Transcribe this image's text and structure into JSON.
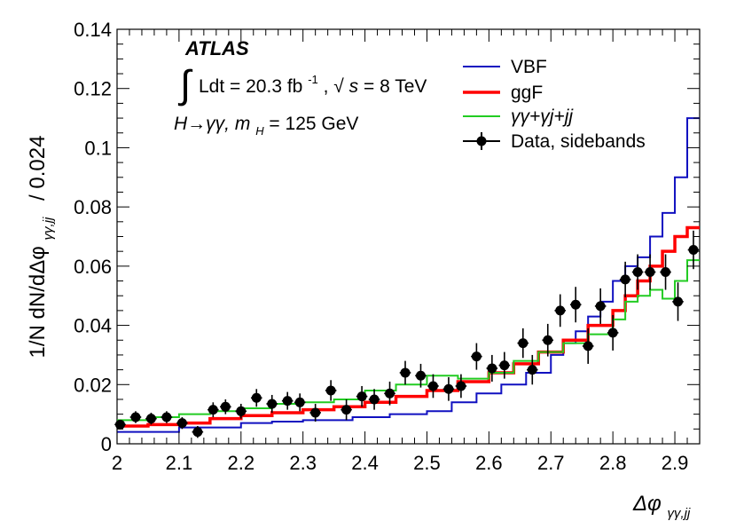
{
  "chart_data": {
    "type": "histogram",
    "xlabel": "Δφ",
    "xlabel_sub": "γγ,jj",
    "ylabel": "1/N dN/dΔφ",
    "ylabel_sub": "γγ,jj",
    "ylabel_suffix": "/ 0.024",
    "xlim": [
      2.0,
      2.94
    ],
    "ylim": [
      0,
      0.14
    ],
    "x_ticks": [
      "2",
      "2.1",
      "2.2",
      "2.3",
      "2.4",
      "2.5",
      "2.6",
      "2.7",
      "2.8",
      "2.9"
    ],
    "x_tick_values": [
      2.0,
      2.1,
      2.2,
      2.3,
      2.4,
      2.5,
      2.6,
      2.7,
      2.8,
      2.9
    ],
    "y_ticks": [
      "0",
      "0.02",
      "0.04",
      "0.06",
      "0.08",
      "0.1",
      "0.12",
      "0.14"
    ],
    "y_tick_values": [
      0,
      0.02,
      0.04,
      0.06,
      0.08,
      0.1,
      0.12,
      0.14
    ],
    "annotations": {
      "atlas": "ATLAS",
      "integral": "∫",
      "lumi_prefix": "Ldt = 20.3 fb",
      "lumi_exp": "-1",
      "energy_prefix": ", √",
      "energy_s": "s",
      "energy_suffix": " = 8 TeV",
      "process_prefix": "H→γγ, ",
      "process_m": "m",
      "process_sub": "H",
      "process_suffix": " = 125 GeV"
    },
    "legend": [
      {
        "key": "vbf",
        "label": "VBF",
        "style": "line",
        "color": "#1010c0"
      },
      {
        "key": "ggf",
        "label": "ggF",
        "style": "line",
        "color": "#ff0000"
      },
      {
        "key": "bkg",
        "label": "γγ+γj+jj",
        "style": "line",
        "color": "#22cc22"
      },
      {
        "key": "data",
        "label": "Data, sidebands",
        "style": "marker",
        "color": "#000000"
      }
    ],
    "series": [
      {
        "name": "VBF",
        "color": "#1010c0",
        "stroke_width": 2,
        "bin_edges": [
          2.0,
          2.1,
          2.2,
          2.25,
          2.3,
          2.38,
          2.44,
          2.5,
          2.54,
          2.58,
          2.62,
          2.66,
          2.7,
          2.72,
          2.74,
          2.76,
          2.78,
          2.8,
          2.82,
          2.84,
          2.86,
          2.88,
          2.9,
          2.92,
          2.94
        ],
        "values": [
          0.004,
          0.0055,
          0.007,
          0.0075,
          0.008,
          0.009,
          0.01,
          0.011,
          0.014,
          0.017,
          0.02,
          0.024,
          0.03,
          0.034,
          0.038,
          0.043,
          0.048,
          0.055,
          0.06,
          0.063,
          0.07,
          0.078,
          0.09,
          0.11
        ]
      },
      {
        "name": "ggF",
        "color": "#ff0000",
        "stroke_width": 3.5,
        "bin_edges": [
          2.0,
          2.05,
          2.1,
          2.15,
          2.2,
          2.25,
          2.3,
          2.35,
          2.4,
          2.45,
          2.5,
          2.55,
          2.6,
          2.64,
          2.68,
          2.72,
          2.76,
          2.8,
          2.82,
          2.84,
          2.86,
          2.88,
          2.9,
          2.92,
          2.94
        ],
        "values": [
          0.006,
          0.0065,
          0.007,
          0.0085,
          0.0095,
          0.0105,
          0.0115,
          0.0125,
          0.014,
          0.016,
          0.018,
          0.021,
          0.024,
          0.027,
          0.031,
          0.035,
          0.04,
          0.045,
          0.05,
          0.055,
          0.06,
          0.065,
          0.07,
          0.073
        ]
      },
      {
        "name": "γγ+γj+jj",
        "color": "#22cc22",
        "stroke_width": 2,
        "bin_edges": [
          2.0,
          2.05,
          2.1,
          2.15,
          2.2,
          2.25,
          2.3,
          2.35,
          2.4,
          2.45,
          2.5,
          2.55,
          2.6,
          2.64,
          2.68,
          2.72,
          2.76,
          2.8,
          2.82,
          2.84,
          2.86,
          2.88,
          2.9,
          2.92,
          2.94
        ],
        "values": [
          0.008,
          0.009,
          0.01,
          0.011,
          0.012,
          0.0135,
          0.014,
          0.015,
          0.018,
          0.02,
          0.023,
          0.022,
          0.024,
          0.028,
          0.031,
          0.034,
          0.037,
          0.042,
          0.048,
          0.05,
          0.052,
          0.049,
          0.055,
          0.062
        ]
      }
    ],
    "data_points": {
      "name": "Data, sidebands",
      "color": "#000000",
      "x_half_width": 0.009,
      "x": [
        2.005,
        2.03,
        2.055,
        2.08,
        2.105,
        2.13,
        2.155,
        2.175,
        2.2,
        2.225,
        2.25,
        2.275,
        2.295,
        2.32,
        2.345,
        2.37,
        2.395,
        2.415,
        2.44,
        2.465,
        2.49,
        2.51,
        2.535,
        2.555,
        2.58,
        2.605,
        2.625,
        2.655,
        2.67,
        2.695,
        2.715,
        2.74,
        2.76,
        2.78,
        2.8,
        2.82,
        2.84,
        2.86,
        2.885,
        2.905,
        2.93
      ],
      "y": [
        0.0065,
        0.009,
        0.0085,
        0.009,
        0.007,
        0.004,
        0.0115,
        0.0125,
        0.011,
        0.0155,
        0.0135,
        0.0145,
        0.014,
        0.0105,
        0.018,
        0.0115,
        0.016,
        0.015,
        0.017,
        0.024,
        0.023,
        0.0195,
        0.0185,
        0.0195,
        0.0295,
        0.0255,
        0.0265,
        0.034,
        0.025,
        0.035,
        0.045,
        0.047,
        0.033,
        0.0465,
        0.0375,
        0.0555,
        0.058,
        0.058,
        0.058,
        0.048,
        0.0655
      ],
      "err": [
        0.0015,
        0.002,
        0.002,
        0.002,
        0.002,
        0.002,
        0.0025,
        0.0025,
        0.0025,
        0.003,
        0.003,
        0.003,
        0.003,
        0.003,
        0.0035,
        0.0035,
        0.0035,
        0.0035,
        0.004,
        0.004,
        0.004,
        0.004,
        0.004,
        0.004,
        0.0045,
        0.0045,
        0.0045,
        0.005,
        0.005,
        0.0055,
        0.0055,
        0.006,
        0.006,
        0.006,
        0.006,
        0.006,
        0.006,
        0.006,
        0.006,
        0.0065,
        0.0065
      ]
    }
  }
}
